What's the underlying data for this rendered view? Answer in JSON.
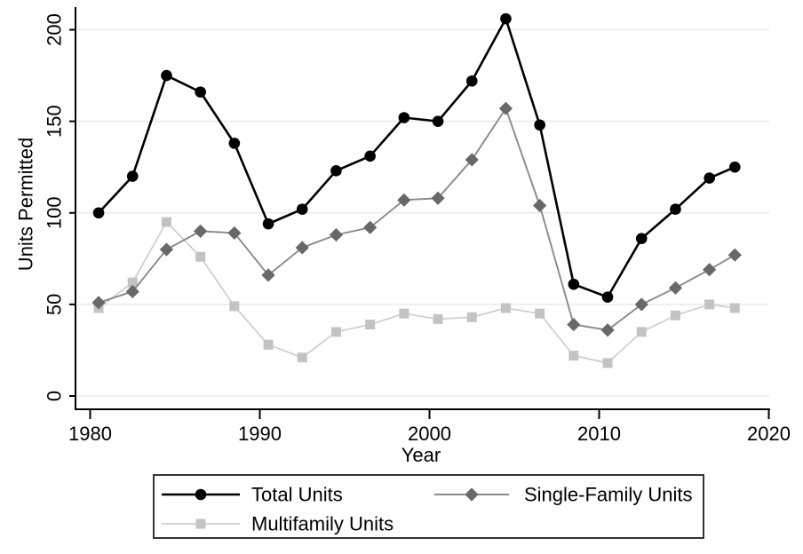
{
  "figure": {
    "background": "#ffffff",
    "axis_color": "#000000",
    "grid_color": "#eaeaea",
    "text_color": "#000000",
    "legend_border_color": "#1f1f1f"
  },
  "chart_data": {
    "type": "line",
    "title": "",
    "xlabel": "Year",
    "ylabel": "Units Permitted",
    "grid": "horizontal",
    "legend_position": "bottom",
    "x_ticks": [
      1980,
      1990,
      2000,
      2010,
      2020
    ],
    "y_ticks": [
      0,
      50,
      100,
      150,
      200
    ],
    "xlim": [
      1979.1,
      2020.2
    ],
    "ylim": [
      -7,
      212
    ],
    "x": [
      1980.5,
      1982.5,
      1984.5,
      1986.5,
      1988.5,
      1990.5,
      1992.5,
      1994.5,
      1996.5,
      1998.5,
      2000.5,
      2002.5,
      2004.5,
      2006.5,
      2008.5,
      2010.5,
      2012.5,
      2014.5,
      2016.5,
      2018
    ],
    "series": [
      {
        "name": "Multifamily Units",
        "marker": "square",
        "marker_color": "#c3c3c3",
        "line_color": "#cdcdcd",
        "line_width": 1.7,
        "values": [
          48,
          62,
          95,
          76,
          49,
          28,
          21,
          35,
          39,
          45,
          42,
          43,
          48,
          45,
          22,
          18,
          35,
          44,
          50,
          48
        ]
      },
      {
        "name": "Single-Family Units",
        "marker": "diamond",
        "marker_color": "#686868",
        "line_color": "#8a8a8a",
        "line_width": 1.9,
        "values": [
          51,
          57,
          80,
          90,
          89,
          66,
          81,
          88,
          92,
          107,
          108,
          129,
          157,
          104,
          39,
          36,
          50,
          59,
          69,
          77
        ]
      },
      {
        "name": "Total Units",
        "marker": "circle",
        "marker_color": "#000000",
        "line_color": "#000000",
        "line_width": 2.6,
        "values": [
          100,
          120,
          175,
          166,
          138,
          94,
          102,
          123,
          131,
          152,
          150,
          172,
          206,
          148,
          61,
          54,
          86,
          102,
          119,
          125
        ]
      }
    ],
    "legend_order": [
      "Total Units",
      "Single-Family Units",
      "Multifamily Units"
    ]
  }
}
